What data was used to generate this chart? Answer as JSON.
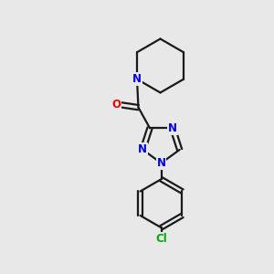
{
  "bg_color": "#e8e8e8",
  "bond_color": "#1a1a1a",
  "bond_width": 1.6,
  "atom_colors": {
    "N": "#0000ee",
    "O": "#ee0000",
    "Cl": "#00aa00",
    "C": "#1a1a1a"
  },
  "font_size_atom": 8.5
}
